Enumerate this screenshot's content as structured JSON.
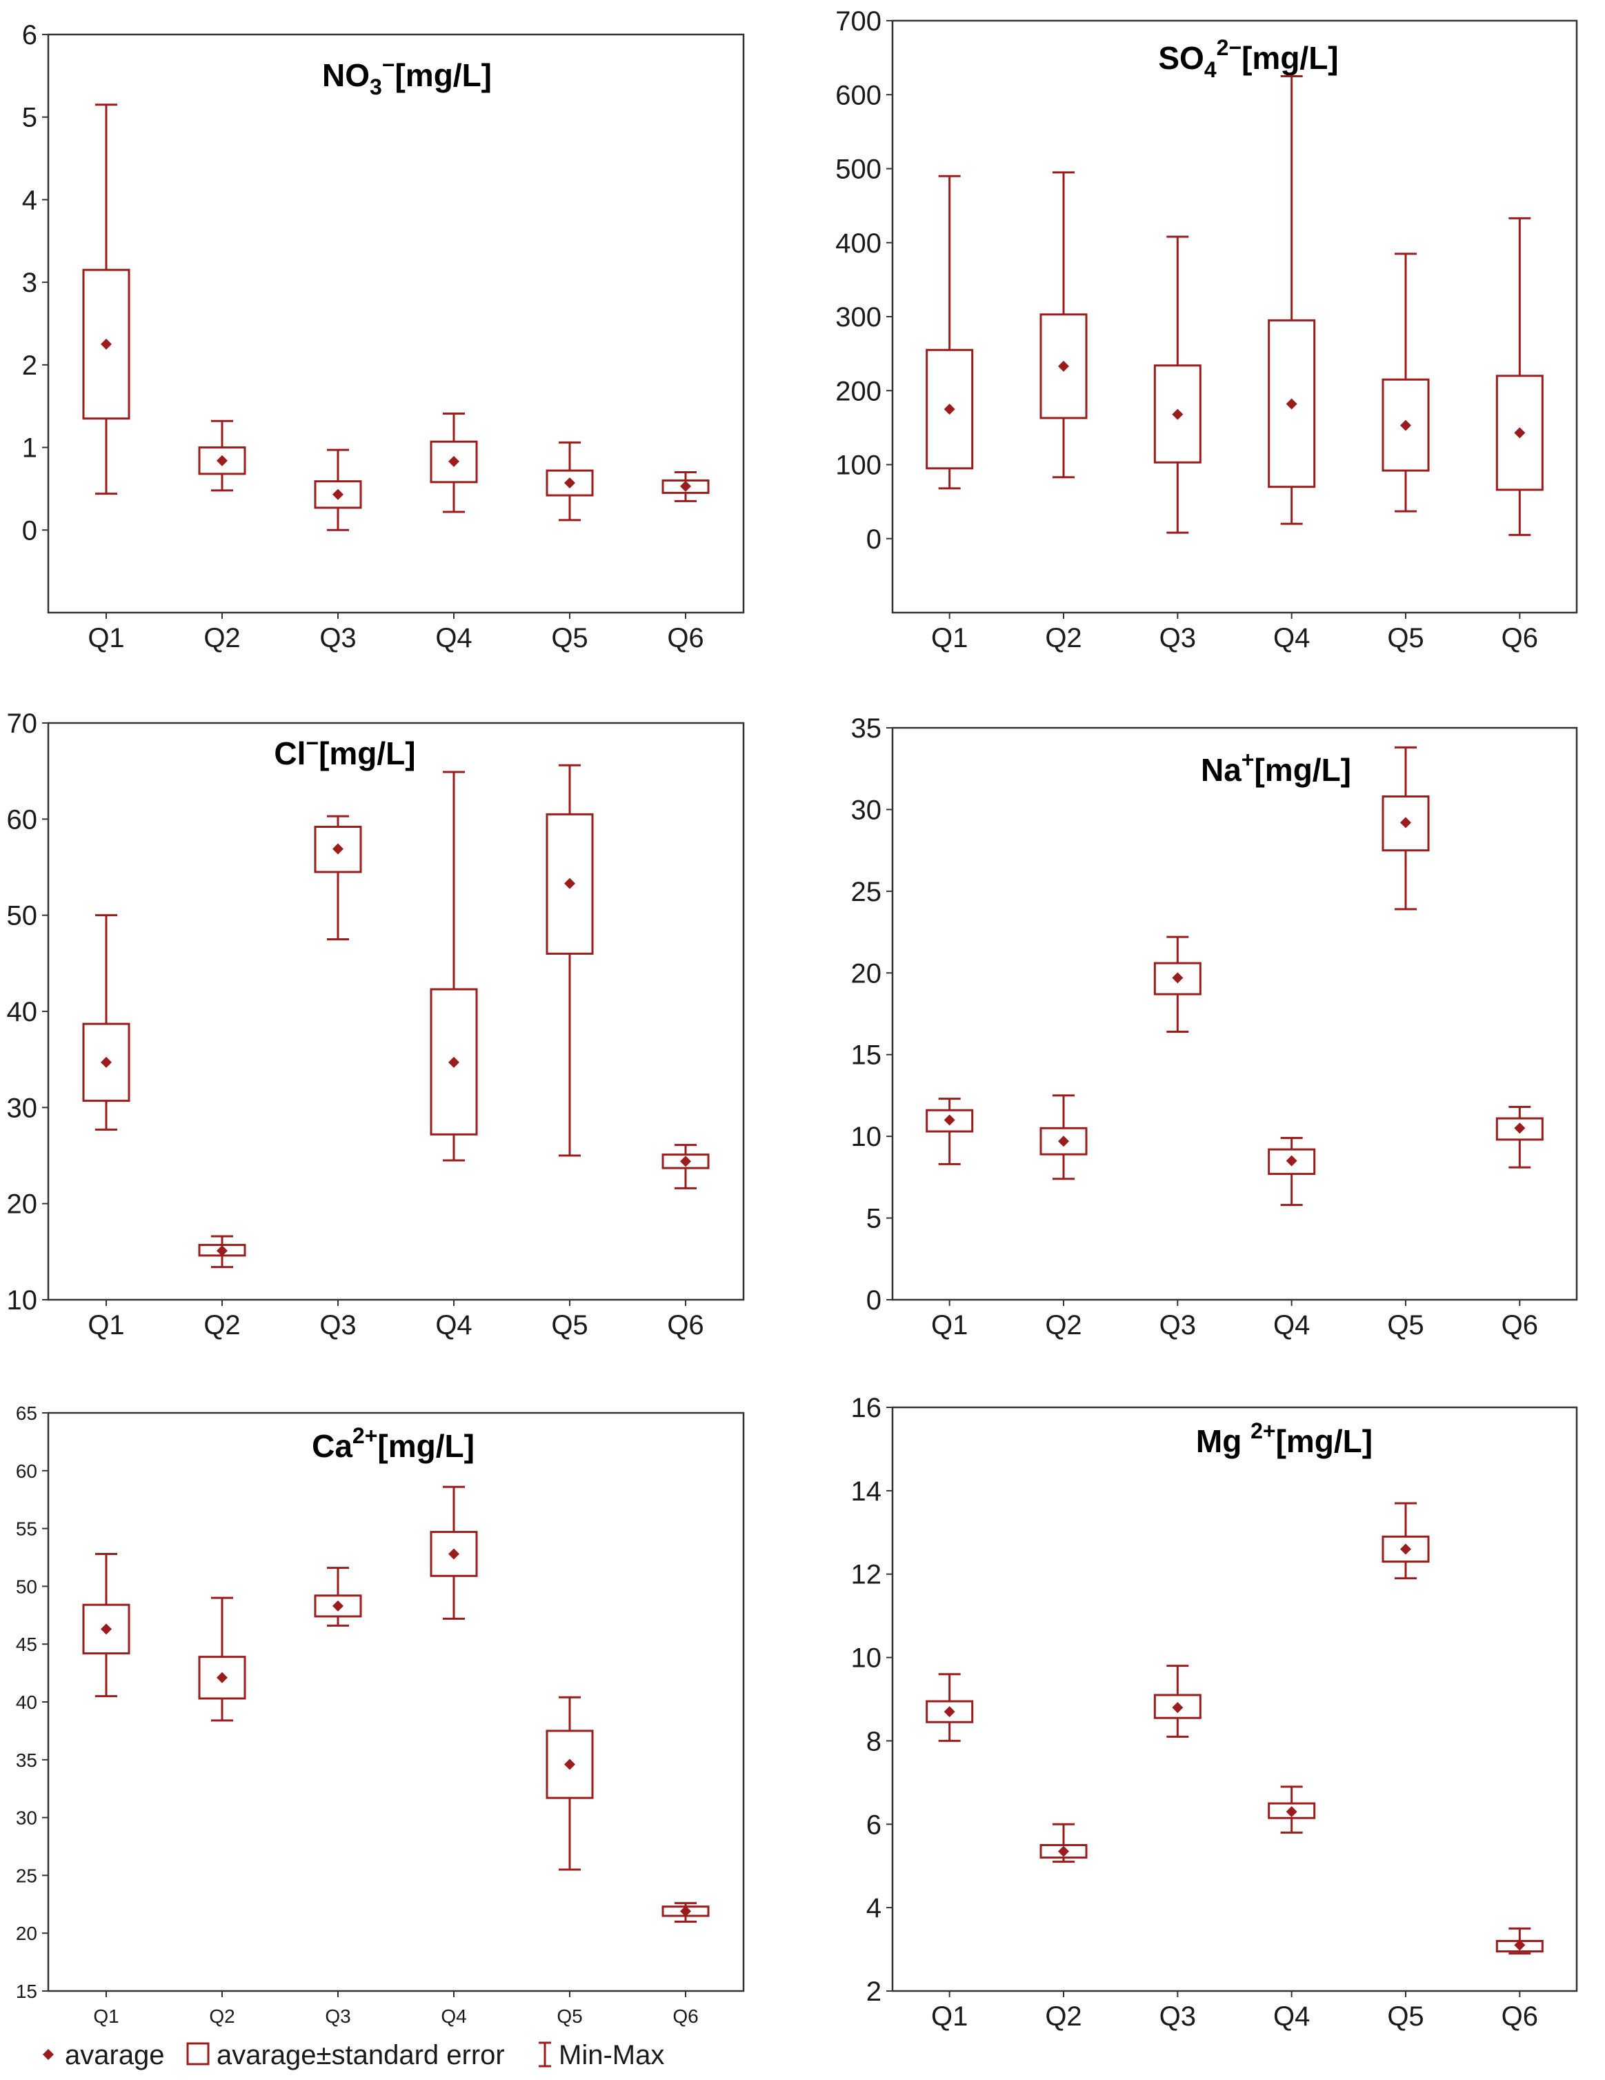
{
  "chart_data": [
    {
      "type": "box",
      "title": "NO₃⁻[mg/L]",
      "title_parts": [
        {
          "t": "NO"
        },
        {
          "t": "3",
          "sub": true
        },
        {
          "t": "−",
          "sup": true
        },
        {
          "t": "[mg/L]"
        }
      ],
      "categories": [
        "Q1",
        "Q2",
        "Q3",
        "Q4",
        "Q5",
        "Q6"
      ],
      "ylim": [
        -1,
        6
      ],
      "yticks": [
        0,
        1,
        2,
        3,
        4,
        5,
        6
      ],
      "mean": [
        2.25,
        0.84,
        0.43,
        0.83,
        0.57,
        0.53
      ],
      "se_low": [
        1.35,
        0.68,
        0.27,
        0.58,
        0.42,
        0.45
      ],
      "se_high": [
        3.15,
        1.0,
        0.59,
        1.07,
        0.72,
        0.6
      ],
      "min": [
        0.44,
        0.48,
        0.0,
        0.22,
        0.12,
        0.35
      ],
      "max": [
        5.15,
        1.32,
        0.97,
        1.41,
        1.06,
        0.7
      ]
    },
    {
      "type": "box",
      "title": "SO₄²⁻[mg/L]",
      "title_parts": [
        {
          "t": "SO"
        },
        {
          "t": "4",
          "sub": true
        },
        {
          "t": "2−",
          "sup": true
        },
        {
          "t": "[mg/L]"
        }
      ],
      "categories": [
        "Q1",
        "Q2",
        "Q3",
        "Q4",
        "Q5",
        "Q6"
      ],
      "ylim": [
        -100,
        700
      ],
      "yticks": [
        0,
        100,
        200,
        300,
        400,
        500,
        600,
        700
      ],
      "mean": [
        175,
        233,
        168,
        182,
        153,
        143
      ],
      "se_low": [
        95,
        163,
        103,
        70,
        92,
        66
      ],
      "se_high": [
        255,
        303,
        234,
        295,
        215,
        220
      ],
      "min": [
        68,
        83,
        8,
        20,
        37,
        5
      ],
      "max": [
        490,
        495,
        408,
        625,
        385,
        433
      ]
    },
    {
      "type": "box",
      "title": "Cl⁻[mg/L]",
      "title_parts": [
        {
          "t": "Cl"
        },
        {
          "t": "−",
          "sup": true
        },
        {
          "t": "[mg/L]"
        }
      ],
      "categories": [
        "Q1",
        "Q2",
        "Q3",
        "Q4",
        "Q5",
        "Q6"
      ],
      "ylim": [
        10,
        70
      ],
      "yticks": [
        10,
        20,
        30,
        40,
        50,
        60,
        70
      ],
      "mean": [
        34.7,
        15.1,
        56.9,
        34.7,
        53.3,
        24.4
      ],
      "se_low": [
        30.7,
        14.6,
        54.5,
        27.2,
        46.0,
        23.7
      ],
      "se_high": [
        38.7,
        15.7,
        59.2,
        42.3,
        60.5,
        25.1
      ],
      "min": [
        27.7,
        13.4,
        47.5,
        24.5,
        25.0,
        21.6
      ],
      "max": [
        50.0,
        16.6,
        60.3,
        64.9,
        65.6,
        26.1
      ]
    },
    {
      "type": "box",
      "title": "Na⁺[mg/L]",
      "title_parts": [
        {
          "t": "Na"
        },
        {
          "t": "+",
          "sup": true
        },
        {
          "t": "[mg/L]"
        }
      ],
      "categories": [
        "Q1",
        "Q2",
        "Q3",
        "Q4",
        "Q5",
        "Q6"
      ],
      "ylim": [
        0,
        35
      ],
      "yticks": [
        0,
        5,
        10,
        15,
        20,
        25,
        30,
        35
      ],
      "mean": [
        11.0,
        9.7,
        19.7,
        8.5,
        29.2,
        10.5
      ],
      "se_low": [
        10.3,
        8.9,
        18.7,
        7.7,
        27.5,
        9.8
      ],
      "se_high": [
        11.6,
        10.5,
        20.6,
        9.2,
        30.8,
        11.1
      ],
      "min": [
        8.3,
        7.4,
        16.4,
        5.8,
        23.9,
        8.1
      ],
      "max": [
        12.3,
        12.5,
        22.2,
        9.9,
        33.8,
        11.8
      ]
    },
    {
      "type": "box",
      "title": "Ca²⁺[mg/L]",
      "title_parts": [
        {
          "t": "Ca"
        },
        {
          "t": "2+",
          "sup": true
        },
        {
          "t": "[mg/L]"
        }
      ],
      "categories": [
        "Q1",
        "Q2",
        "Q3",
        "Q4",
        "Q5",
        "Q6"
      ],
      "ylim": [
        15,
        65
      ],
      "yticks": [
        15,
        20,
        25,
        30,
        35,
        40,
        45,
        50,
        55,
        60,
        65
      ],
      "mean": [
        46.3,
        42.1,
        48.3,
        52.8,
        34.6,
        21.9
      ],
      "se_low": [
        44.2,
        40.3,
        47.4,
        50.9,
        31.7,
        21.5
      ],
      "se_high": [
        48.4,
        43.9,
        49.2,
        54.7,
        37.5,
        22.3
      ],
      "min": [
        40.5,
        38.4,
        46.6,
        47.2,
        25.5,
        21.0
      ],
      "max": [
        52.8,
        49.0,
        51.6,
        58.6,
        40.4,
        22.6
      ]
    },
    {
      "type": "box",
      "title": "Mg ²⁺[mg/L]",
      "title_parts": [
        {
          "t": "Mg "
        },
        {
          "t": "2+",
          "sup": true
        },
        {
          "t": "[mg/L]"
        }
      ],
      "categories": [
        "Q1",
        "Q2",
        "Q3",
        "Q4",
        "Q5",
        "Q6"
      ],
      "ylim": [
        2,
        16
      ],
      "yticks": [
        2,
        4,
        6,
        8,
        10,
        12,
        14,
        16
      ],
      "mean": [
        8.7,
        5.35,
        8.8,
        6.3,
        12.6,
        3.1
      ],
      "se_low": [
        8.45,
        5.2,
        8.55,
        6.15,
        12.3,
        2.95
      ],
      "se_high": [
        8.95,
        5.5,
        9.1,
        6.5,
        12.9,
        3.2
      ],
      "min": [
        8.0,
        5.1,
        8.1,
        5.8,
        11.9,
        2.9
      ],
      "max": [
        9.6,
        6.0,
        9.8,
        6.9,
        13.7,
        3.5
      ]
    }
  ],
  "legend": {
    "average": "avarage",
    "se": "avarage±standard error",
    "minmax": "Min-Max"
  },
  "colors": {
    "series": "#9b1c1c",
    "axis": "#333333"
  }
}
